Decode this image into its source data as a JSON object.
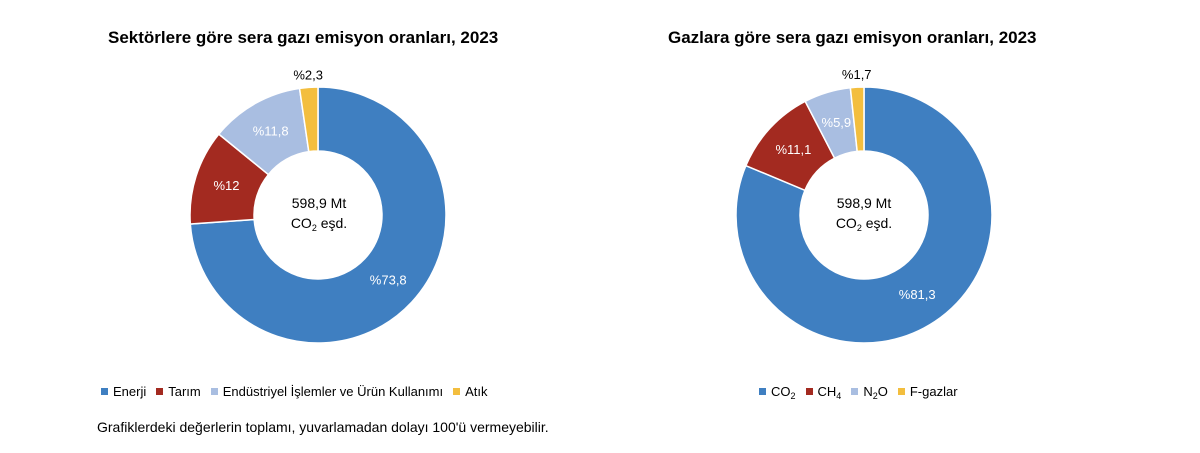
{
  "chart_data": [
    {
      "type": "pie",
      "title": "Sektörlere göre sera gazı emisyon oranları, 2023",
      "center_label": {
        "line1": "598,9 Mt",
        "line2_main": "CO",
        "line2_sub": "2",
        "line2_tail": " eşd."
      },
      "slices": [
        {
          "name": "Enerji",
          "value": 73.8,
          "label": "%73,8",
          "color": "#3F7FC1"
        },
        {
          "name": "Tarım",
          "value": 12.0,
          "label": "%12",
          "color": "#A32A20"
        },
        {
          "name": "Endüstriyel İşlemler ve Ürün Kullanımı",
          "value": 11.8,
          "label": "%11,8",
          "color": "#A9BEE1"
        },
        {
          "name": "Atık",
          "value": 2.3,
          "label": "%2,3",
          "color": "#F3BE3E"
        }
      ],
      "legend_position": "bottom"
    },
    {
      "type": "pie",
      "title": "Gazlara göre sera gazı emisyon oranları, 2023",
      "center_label": {
        "line1": "598,9 Mt",
        "line2_main": "CO",
        "line2_sub": "2",
        "line2_tail": " eşd."
      },
      "slices": [
        {
          "name": "CO2",
          "value": 81.3,
          "label": "%81,3",
          "color": "#3F7FC1",
          "legend_main": "CO",
          "legend_sub": "2"
        },
        {
          "name": "CH4",
          "value": 11.1,
          "label": "%11,1",
          "color": "#A32A20",
          "legend_main": "CH",
          "legend_sub": "4"
        },
        {
          "name": "N2O",
          "value": 5.9,
          "label": "%5,9",
          "color": "#A9BEE1",
          "legend_main": "N",
          "legend_sub": "2",
          "legend_tail": "O"
        },
        {
          "name": "F-gazlar",
          "value": 1.7,
          "label": "%1,7",
          "color": "#F3BE3E",
          "legend_main": "F-gazlar"
        }
      ],
      "legend_position": "bottom"
    }
  ],
  "footnote": "Grafiklerdeki değerlerin toplamı, yuvarlamadan dolayı 100'ü vermeyebilir."
}
